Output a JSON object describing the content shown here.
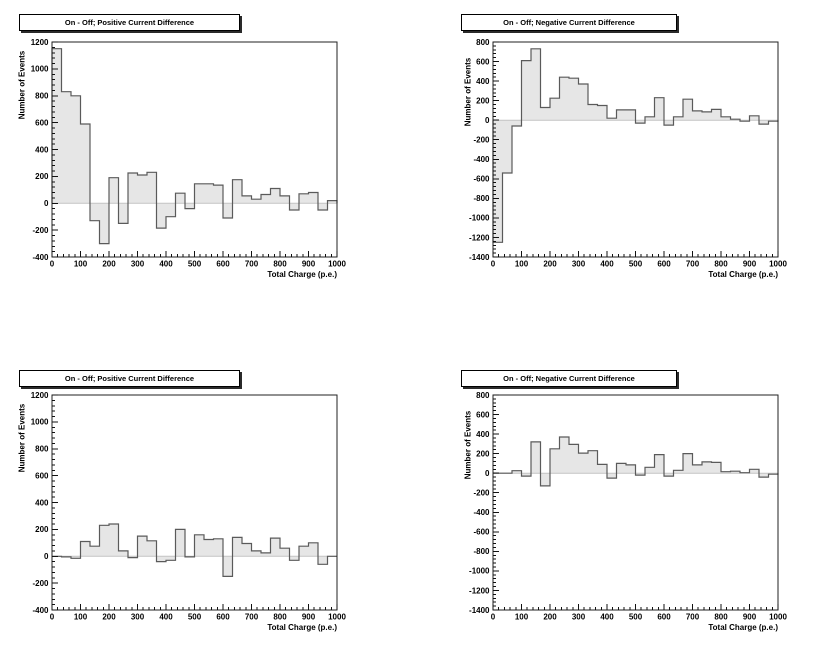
{
  "page": {
    "background": "#ffffff"
  },
  "styles": {
    "fill_color": "#e6e6e6",
    "outline_color": "#5a5a5a",
    "frame_color": "#222222",
    "tick_color": "#111111",
    "text_color": "#000000",
    "baseline_color": "#c4c4c4"
  },
  "chart_data": [
    {
      "type": "bar",
      "subtype": "step-histogram",
      "position": "top-left",
      "title": "On - Off; Positive Current Difference",
      "xlabel": "Total Charge (p.e.)",
      "ylabel": "Number of Events",
      "xlim": [
        0,
        1000
      ],
      "ylim": [
        -400,
        1200
      ],
      "x_major_step": 100,
      "x_minor_step": 20,
      "y_major_step": 200,
      "y_minor_step": 40,
      "n_bins": 30,
      "bin_width": 33.33,
      "values": [
        1150,
        830,
        800,
        590,
        -130,
        -300,
        190,
        -150,
        225,
        210,
        230,
        -185,
        -100,
        75,
        -40,
        145,
        145,
        135,
        -110,
        175,
        55,
        30,
        65,
        110,
        55,
        -50,
        70,
        80,
        -50,
        20
      ]
    },
    {
      "type": "bar",
      "subtype": "step-histogram",
      "position": "top-right",
      "title": "On - Off; Negative Current Difference",
      "xlabel": "Total Charge (p.e.)",
      "ylabel": "Number of Events",
      "xlim": [
        0,
        1000
      ],
      "ylim": [
        -1400,
        800
      ],
      "x_major_step": 100,
      "x_minor_step": 20,
      "y_major_step": 200,
      "y_minor_step": 40,
      "n_bins": 30,
      "bin_width": 33.33,
      "values": [
        -1250,
        -540,
        -60,
        610,
        730,
        130,
        225,
        440,
        430,
        370,
        160,
        150,
        20,
        105,
        105,
        -30,
        35,
        230,
        -50,
        35,
        215,
        95,
        85,
        110,
        35,
        10,
        -10,
        45,
        -40,
        -10
      ]
    },
    {
      "type": "bar",
      "subtype": "step-histogram",
      "position": "bottom-left",
      "title": "On - Off; Positive Current Difference",
      "xlabel": "Total Charge (p.e.)",
      "ylabel": "Number of Events",
      "xlim": [
        0,
        1000
      ],
      "ylim": [
        -400,
        1200
      ],
      "x_major_step": 100,
      "x_minor_step": 20,
      "y_major_step": 200,
      "y_minor_step": 40,
      "n_bins": 30,
      "bin_width": 33.33,
      "values": [
        0,
        -5,
        -15,
        110,
        75,
        230,
        240,
        40,
        -10,
        150,
        115,
        -40,
        -30,
        200,
        -5,
        160,
        125,
        130,
        -150,
        140,
        95,
        40,
        25,
        135,
        60,
        -30,
        75,
        100,
        -60,
        0
      ]
    },
    {
      "type": "bar",
      "subtype": "step-histogram",
      "position": "bottom-right",
      "title": "On - Off; Negative Current Difference",
      "xlabel": "Total Charge (p.e.)",
      "ylabel": "Number of Events",
      "xlim": [
        0,
        1000
      ],
      "ylim": [
        -1400,
        800
      ],
      "x_major_step": 100,
      "x_minor_step": 20,
      "y_major_step": 200,
      "y_minor_step": 40,
      "n_bins": 30,
      "bin_width": 33.33,
      "values": [
        0,
        0,
        25,
        -30,
        320,
        -130,
        250,
        370,
        295,
        205,
        230,
        90,
        -50,
        100,
        85,
        -20,
        60,
        190,
        -30,
        30,
        200,
        85,
        115,
        110,
        15,
        20,
        5,
        40,
        -40,
        -10
      ]
    }
  ]
}
